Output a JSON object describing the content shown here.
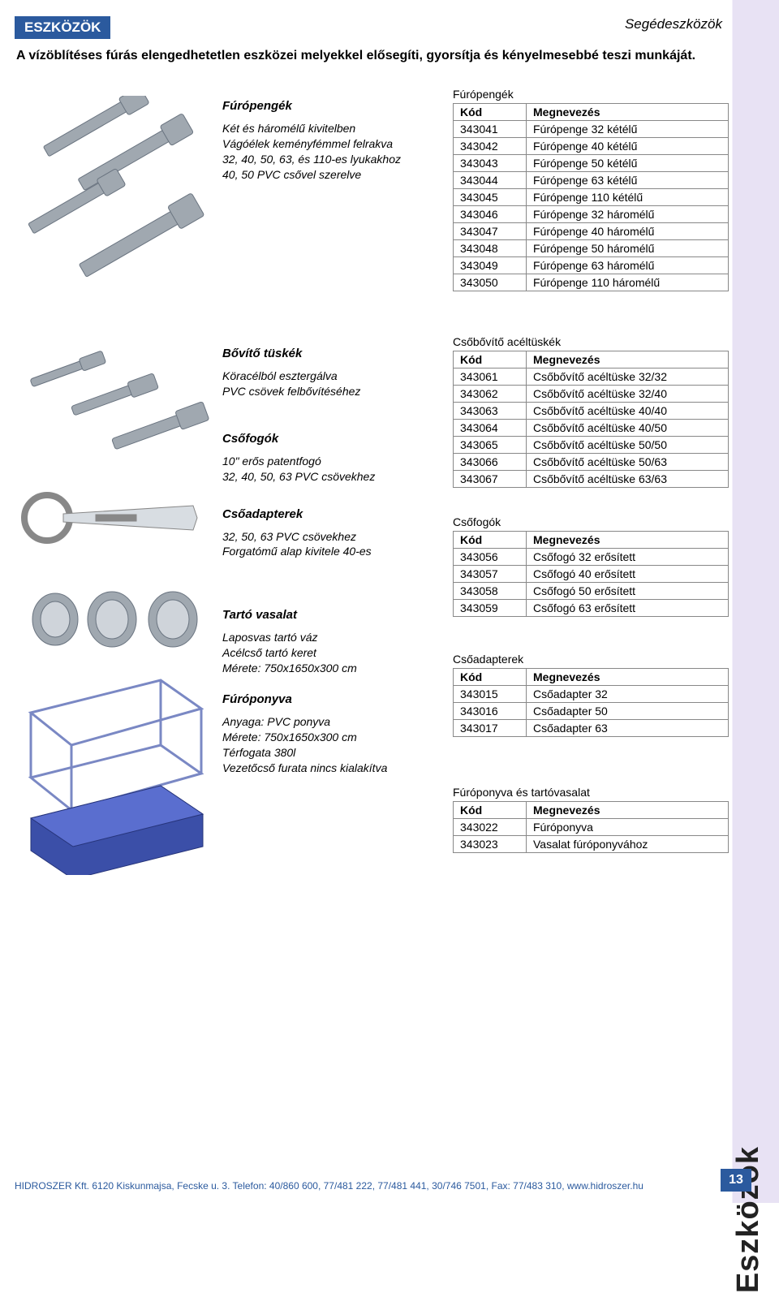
{
  "header": {
    "band": "ESZKÖZÖK",
    "right": "Segédeszközök"
  },
  "intro": "A vízöblítéses fúrás elengedhetetlen eszközei melyekkel elősegíti, gyorsítja és kényelmesebbé teszi munkáját.",
  "side_tab": "Eszközök",
  "page_number": "13",
  "footer": "HIDROSZER Kft.  6120 Kiskunmajsa, Fecske u. 3. Telefon: 40/860 600, 77/481 222, 77/481 441, 30/746 7501, Fax: 77/483 310, www.hidroszer.hu",
  "colors": {
    "brand_blue": "#2b5a9e",
    "side_bg": "#e8e2f4",
    "illustration_gray": "#a0a8b0",
    "illustration_blue": "#3b4fa8",
    "table_border": "#888888"
  },
  "sections": {
    "s1": {
      "mid_title": "Fúrópengék",
      "mid_desc": "Két és háromélű kivitelben\nVágóélek keményfémmel felrakva\n32, 40, 50, 63, és 110-es lyukakhoz\n40, 50 PVC csővel szerelve",
      "table_title": "Fúrópengék",
      "col1": "Kód",
      "col2": "Megnevezés",
      "rows": [
        [
          "343041",
          "Fúrópenge 32 kétélű"
        ],
        [
          "343042",
          "Fúrópenge 40 kétélű"
        ],
        [
          "343043",
          "Fúrópenge 50 kétélű"
        ],
        [
          "343044",
          "Fúrópenge 63 kétélű"
        ],
        [
          "343045",
          "Fúrópenge 110 kétélű"
        ],
        [
          "343046",
          "Fúrópenge 32 háromélű"
        ],
        [
          "343047",
          "Fúrópenge 40 háromélű"
        ],
        [
          "343048",
          "Fúrópenge 50 háromélű"
        ],
        [
          "343049",
          "Fúrópenge 63 háromélű"
        ],
        [
          "343050",
          "Fúrópenge 110 háromélű"
        ]
      ]
    },
    "s2": {
      "mid_title1": "Bővítő tüskék",
      "mid_desc1": "Köracélból esztergálva\nPVC csövek felbővítéséhez",
      "mid_title2": "Csőfogók",
      "mid_desc2": "10\" erős patentfogó\n32, 40, 50, 63 PVC csövekhez",
      "mid_title3": "Csőadapterek",
      "mid_desc3": "32, 50, 63 PVC csövekhez\nForgatómű alap kivitele 40-es",
      "mid_title4": "Tartó vasalat",
      "mid_desc4": "Laposvas tartó váz\nAcélcső tartó keret\nMérete: 750x1650x300 cm",
      "mid_title5": "Fúróponyva",
      "mid_desc5": "Anyaga: PVC ponyva\nMérete: 750x1650x300 cm\nTérfogata 380l\nVezetőcső furata nincs kialakítva",
      "t2_title": "Csőbővítő acéltüskék",
      "t2_col1": "Kód",
      "t2_col2": "Megnevezés",
      "t2_rows": [
        [
          "343061",
          "Csőbővítő acéltüske 32/32"
        ],
        [
          "343062",
          "Csőbővítő acéltüske 32/40"
        ],
        [
          "343063",
          "Csőbővítő acéltüske 40/40"
        ],
        [
          "343064",
          "Csőbővítő acéltüske 40/50"
        ],
        [
          "343065",
          "Csőbővítő acéltüske 50/50"
        ],
        [
          "343066",
          "Csőbővítő acéltüske 50/63"
        ],
        [
          "343067",
          "Csőbővítő acéltüske 63/63"
        ]
      ],
      "t3_title": "Csőfogók",
      "t3_col1": "Kód",
      "t3_col2": "Megnevezés",
      "t3_rows": [
        [
          "343056",
          "Csőfogó 32 erősített"
        ],
        [
          "343057",
          "Csőfogó 40 erősített"
        ],
        [
          "343058",
          "Csőfogó 50 erősített"
        ],
        [
          "343059",
          "Csőfogó 63 erősített"
        ]
      ],
      "t4_title": "Csőadapterek",
      "t4_col1": "Kód",
      "t4_col2": "Megnevezés",
      "t4_rows": [
        [
          "343015",
          "Csőadapter 32"
        ],
        [
          "343016",
          "Csőadapter 50"
        ],
        [
          "343017",
          "Csőadapter 63"
        ]
      ],
      "t5_title": "Fúróponyva és tartóvasalat",
      "t5_col1": "Kód",
      "t5_col2": "Megnevezés",
      "t5_rows": [
        [
          "343022",
          "Fúróponyva"
        ],
        [
          "343023",
          "Vasalat fúróponyvához"
        ]
      ]
    }
  }
}
